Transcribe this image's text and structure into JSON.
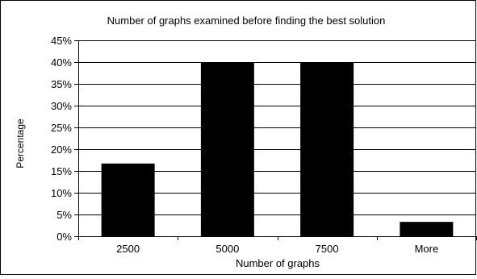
{
  "chart_data": {
    "type": "bar",
    "title": "Number of graphs examined before finding the best solution",
    "xlabel": "Number of graphs",
    "ylabel": "Percentage",
    "categories": [
      "2500",
      "5000",
      "7500",
      "More"
    ],
    "values": [
      16.7,
      40,
      40,
      3.3
    ],
    "ylim": [
      0,
      45
    ],
    "yticks": [
      "0%",
      "5%",
      "10%",
      "15%",
      "20%",
      "25%",
      "30%",
      "35%",
      "40%",
      "45%"
    ],
    "grid": true,
    "legend": "none",
    "bar_color": "#000000",
    "grid_color": "#000000"
  }
}
